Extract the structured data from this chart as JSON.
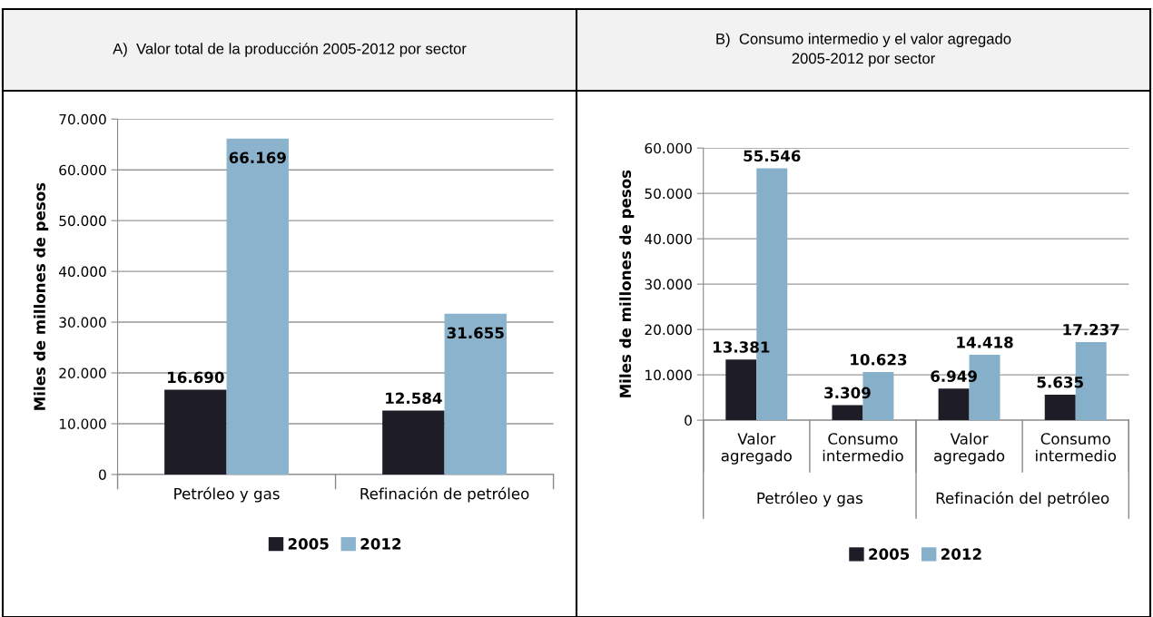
{
  "chart_data": [
    {
      "type": "bar",
      "title": "A)  Valor total de la producción 2005-2012 por sector",
      "ylabel": "Miles de millones de pesos",
      "categories": [
        "Petróleo y gas",
        "Refinación de petróleo"
      ],
      "series": [
        {
          "name": "2005",
          "color": "#1e1d27",
          "values": [
            16690,
            12584
          ],
          "value_labels": [
            "16.690",
            "12.584"
          ]
        },
        {
          "name": "2012",
          "color": "#8cb3cd",
          "values": [
            66169,
            31655
          ],
          "value_labels": [
            "66.169",
            "31.655"
          ]
        }
      ],
      "ylim": [
        0,
        70000
      ],
      "yticks": [
        {
          "value": 0,
          "label": "0"
        },
        {
          "value": 10000,
          "label": "10.000"
        },
        {
          "value": 20000,
          "label": "20.000"
        },
        {
          "value": 30000,
          "label": "30.000"
        },
        {
          "value": 40000,
          "label": "40.000"
        },
        {
          "value": 50000,
          "label": "50.000"
        },
        {
          "value": 60000,
          "label": "60.000"
        },
        {
          "value": 70000,
          "label": "70.000"
        }
      ],
      "grid": "y",
      "legend": "bottom"
    },
    {
      "type": "bar",
      "title": "B)  Consumo intermedio y el valor agregado\n2005-2012 por sector",
      "ylabel": "Miles de millones de pesos",
      "categories": [
        "Valor\nagregado",
        "Consumo\nintermedio",
        "Valor\nagregado",
        "Consumo\nintermedio"
      ],
      "series": [
        {
          "name": "2005",
          "color": "#1e1d27",
          "values": [
            13381,
            3309,
            6949,
            5635
          ],
          "value_labels": [
            "13.381",
            "3.309",
            "6.949",
            "5.635"
          ]
        },
        {
          "name": "2012",
          "color": "#86afca",
          "values": [
            55546,
            10623,
            14418,
            17237
          ],
          "value_labels": [
            "55.546",
            "10.623",
            "14.418",
            "17.237"
          ]
        }
      ],
      "annotations": [
        "Petróleo y gas",
        "Refinación del petróleo"
      ],
      "ylim": [
        0,
        60000
      ],
      "yticks": [
        {
          "value": 0,
          "label": "0"
        },
        {
          "value": 10000,
          "label": "10.000"
        },
        {
          "value": 20000,
          "label": "20.000"
        },
        {
          "value": 30000,
          "label": "30.000"
        },
        {
          "value": 40000,
          "label": "40.000"
        },
        {
          "value": 50000,
          "label": "50.000"
        },
        {
          "value": 60000,
          "label": "60.000"
        }
      ],
      "grid": "y",
      "legend": "bottom"
    }
  ]
}
